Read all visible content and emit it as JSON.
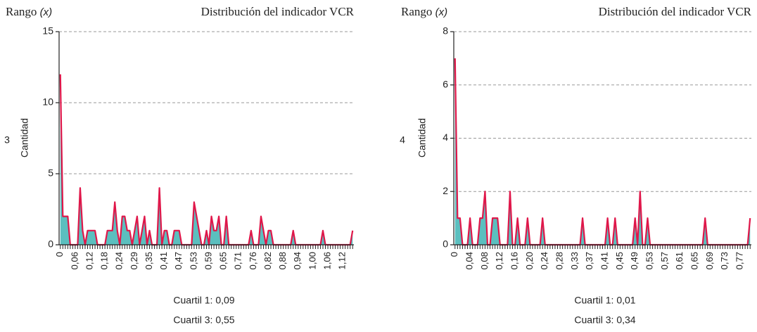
{
  "chart_data": [
    {
      "type": "area",
      "range_label": "Rango",
      "range_var": "(x)",
      "title": "Distribución del indicador VCR",
      "panel": "3",
      "y_label": "Cantidad",
      "notes": [
        "Cuartil 1: 0,09",
        "Cuartil 3: 0,55"
      ],
      "line_color": "#e0174a",
      "fill_color": "#5bbfbf",
      "grid": true,
      "ylim": [
        0,
        15
      ],
      "yticks": [
        0,
        5,
        10,
        15
      ],
      "categories": [
        "0",
        null,
        null,
        null,
        null,
        null,
        "0,06",
        null,
        null,
        null,
        null,
        null,
        "0,12",
        null,
        null,
        null,
        null,
        null,
        "0,18",
        null,
        null,
        null,
        null,
        null,
        "0,24",
        null,
        null,
        null,
        null,
        null,
        "0,29",
        null,
        null,
        null,
        null,
        null,
        "0,35",
        null,
        null,
        null,
        null,
        null,
        "0,41",
        null,
        null,
        null,
        null,
        null,
        "0,47",
        null,
        null,
        null,
        null,
        null,
        "0,53",
        null,
        null,
        null,
        null,
        null,
        "0,59",
        null,
        null,
        null,
        null,
        null,
        "0,65",
        null,
        null,
        null,
        null,
        null,
        "0,71",
        null,
        null,
        null,
        null,
        null,
        "0,76",
        null,
        null,
        null,
        null,
        null,
        "0,82",
        null,
        null,
        null,
        null,
        null,
        "0,88",
        null,
        null,
        null,
        null,
        null,
        "0,94",
        null,
        null,
        null,
        null,
        null,
        "1,00",
        null,
        null,
        null,
        null,
        null,
        "1,06",
        null,
        null,
        null,
        null,
        null,
        "1,12",
        null,
        null,
        null,
        null
      ],
      "values": [
        12,
        2,
        2,
        2,
        0,
        0,
        0,
        0,
        4,
        1,
        0,
        1,
        1,
        1,
        1,
        0,
        0,
        0,
        0,
        1,
        1,
        1,
        3,
        1,
        0,
        2,
        2,
        1,
        1,
        0,
        1,
        2,
        0,
        1,
        2,
        0,
        1,
        0,
        0,
        0,
        4,
        0,
        1,
        1,
        0,
        0,
        1,
        1,
        1,
        0,
        0,
        0,
        0,
        0,
        3,
        2,
        1,
        0,
        0,
        1,
        0,
        2,
        1,
        1,
        2,
        0,
        0,
        2,
        0,
        0,
        0,
        0,
        0,
        0,
        0,
        0,
        0,
        1,
        0,
        0,
        0,
        2,
        1,
        0,
        1,
        1,
        0,
        0,
        0,
        0,
        0,
        0,
        0,
        0,
        1,
        0,
        0,
        0,
        0,
        0,
        0,
        0,
        0,
        0,
        0,
        0,
        1,
        0,
        0,
        0,
        0,
        0,
        0,
        0,
        0,
        0,
        0,
        0,
        1
      ]
    },
    {
      "type": "area",
      "range_label": "Rango",
      "range_var": "(x)",
      "title": "Distribución del indicador VCR",
      "panel": "4",
      "y_label": "Cantidad",
      "notes": [
        "Cuartil 1: 0,01",
        "Cuartil 3: 0,34"
      ],
      "line_color": "#e0174a",
      "fill_color": "#5bbfbf",
      "grid": true,
      "ylim": [
        0,
        8
      ],
      "yticks": [
        0,
        2,
        4,
        6,
        8
      ],
      "categories": [
        "0",
        null,
        null,
        null,
        null,
        null,
        "0,04",
        null,
        null,
        null,
        null,
        null,
        "0,08",
        null,
        null,
        null,
        null,
        null,
        "0,12",
        null,
        null,
        null,
        null,
        null,
        "0,16",
        null,
        null,
        null,
        null,
        null,
        "0,20",
        null,
        null,
        null,
        null,
        null,
        "0,24",
        null,
        null,
        null,
        null,
        null,
        "0,28",
        null,
        null,
        null,
        null,
        null,
        "0,33",
        null,
        null,
        null,
        null,
        null,
        "0,37",
        null,
        null,
        null,
        null,
        null,
        "0,41",
        null,
        null,
        null,
        null,
        null,
        "0,45",
        null,
        null,
        null,
        null,
        null,
        "0,49",
        null,
        null,
        null,
        null,
        null,
        "0,53",
        null,
        null,
        null,
        null,
        null,
        "0,57",
        null,
        null,
        null,
        null,
        null,
        "0,61",
        null,
        null,
        null,
        null,
        null,
        "0,65",
        null,
        null,
        null,
        null,
        null,
        "0,69",
        null,
        null,
        null,
        null,
        null,
        "0,73",
        null,
        null,
        null,
        null,
        null,
        "0,77",
        null,
        null,
        null,
        null
      ],
      "values": [
        7,
        1,
        1,
        0,
        0,
        0,
        1,
        0,
        0,
        0,
        1,
        1,
        2,
        0,
        0,
        1,
        1,
        1,
        0,
        0,
        0,
        0,
        2,
        0,
        0,
        1,
        0,
        0,
        0,
        1,
        0,
        0,
        0,
        0,
        0,
        1,
        0,
        0,
        0,
        0,
        0,
        0,
        0,
        0,
        0,
        0,
        0,
        0,
        0,
        0,
        0,
        1,
        0,
        0,
        0,
        0,
        0,
        0,
        0,
        0,
        0,
        1,
        0,
        0,
        1,
        0,
        0,
        0,
        0,
        0,
        0,
        0,
        1,
        0,
        2,
        0,
        0,
        1,
        0,
        0,
        0,
        0,
        0,
        0,
        0,
        0,
        0,
        0,
        0,
        0,
        0,
        0,
        0,
        0,
        0,
        0,
        0,
        0,
        0,
        0,
        1,
        0,
        0,
        0,
        0,
        0,
        0,
        0,
        0,
        0,
        0,
        0,
        0,
        0,
        0,
        0,
        0,
        0,
        1
      ]
    }
  ]
}
